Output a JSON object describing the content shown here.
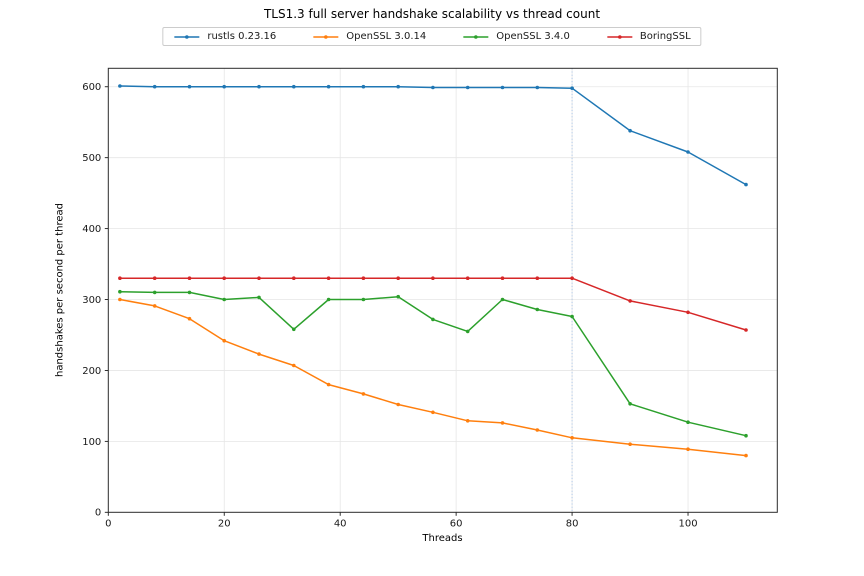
{
  "chart_data": {
    "type": "line",
    "title": "TLS1.3 full server handshake scalability vs thread count",
    "xlabel": "Threads",
    "ylabel": "handshakes per second per thread",
    "x": [
      2,
      8,
      14,
      20,
      26,
      32,
      38,
      44,
      50,
      56,
      62,
      68,
      74,
      80,
      90,
      100,
      110
    ],
    "series": [
      {
        "name": "rustls 0.23.16",
        "color": "#1f77b4",
        "values": [
          601,
          600,
          600,
          600,
          600,
          600,
          600,
          600,
          600,
          599,
          599,
          599,
          599,
          598,
          538,
          508,
          462
        ]
      },
      {
        "name": "OpenSSL 3.0.14",
        "color": "#ff7f0e",
        "values": [
          300,
          291,
          273,
          242,
          223,
          207,
          180,
          167,
          152,
          141,
          129,
          126,
          116,
          105,
          96,
          89,
          80
        ]
      },
      {
        "name": "OpenSSL 3.4.0",
        "color": "#2ca02c",
        "values": [
          311,
          310,
          310,
          300,
          303,
          258,
          300,
          300,
          304,
          272,
          255,
          300,
          286,
          276,
          153,
          127,
          108
        ]
      },
      {
        "name": "BoringSSL",
        "color": "#d62728",
        "values": [
          330,
          330,
          330,
          330,
          330,
          330,
          330,
          330,
          330,
          330,
          330,
          330,
          330,
          330,
          298,
          282,
          257
        ]
      }
    ],
    "xlim": [
      0,
      115.4
    ],
    "ylim": [
      0,
      626
    ],
    "xticks": [
      0,
      20,
      40,
      60,
      80,
      100
    ],
    "yticks": [
      0,
      100,
      200,
      300,
      400,
      500,
      600
    ],
    "vline": {
      "x": 80,
      "color": "#aec7e8",
      "style": "dotted"
    },
    "grid": true,
    "legend_position": "top-center"
  }
}
